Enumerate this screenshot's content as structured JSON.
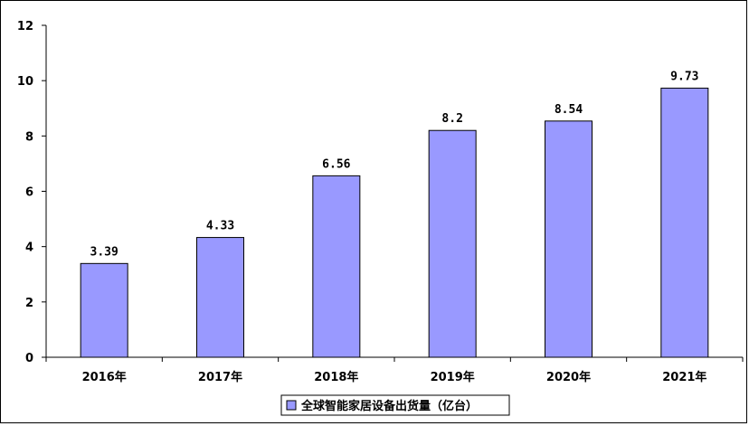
{
  "chart_data": {
    "type": "bar",
    "categories": [
      "2016年",
      "2017年",
      "2018年",
      "2019年",
      "2020年",
      "2021年"
    ],
    "series": [
      {
        "name": "全球智能家居设备出货量（亿台）",
        "values": [
          3.39,
          4.33,
          6.56,
          8.2,
          8.54,
          9.73
        ],
        "labels": [
          "3.39",
          "4.33",
          "6.56",
          "8.2",
          "8.54",
          "9.73"
        ]
      }
    ],
    "ylim": [
      0,
      12
    ],
    "yticks": [
      0,
      2,
      4,
      6,
      8,
      10,
      12
    ],
    "grid": false,
    "legend_position": "bottom",
    "bar_color": "#9999FF",
    "bar_stroke": "#000000"
  }
}
